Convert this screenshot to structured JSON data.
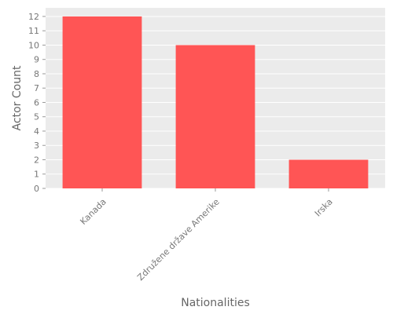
{
  "chart_data": {
    "type": "bar",
    "title": "",
    "xlabel": "Nationalities",
    "ylabel": "Actor Count",
    "categories": [
      "Kanada",
      "Združene države Amerike",
      "Irska"
    ],
    "values": [
      12,
      10,
      2
    ],
    "ylim": [
      0,
      12.6
    ],
    "yticks": [
      0,
      1,
      2,
      3,
      4,
      5,
      6,
      7,
      8,
      9,
      10,
      11,
      12
    ],
    "grid": true,
    "legend": "none",
    "colors": {
      "bar": "#ff5555",
      "plot_background": "#ebebeb",
      "grid": "#ffffff",
      "text": "#777777"
    }
  }
}
